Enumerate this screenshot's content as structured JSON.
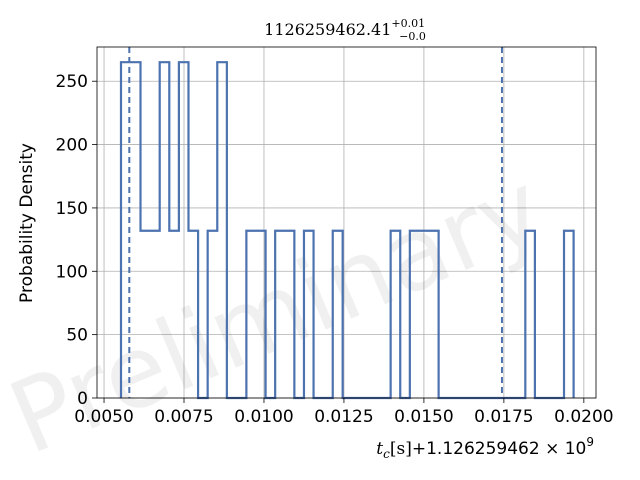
{
  "chart_data": {
    "type": "histogram",
    "title": {
      "base": "1126259462.41",
      "sup": "+0.01",
      "sub": "−0.0"
    },
    "xlabel": {
      "math": "t",
      "math_sub": "c",
      "unit": "[s]",
      "offset": "+1.126259462 × 10",
      "offset_exp": "9"
    },
    "ylabel": "Probability Density",
    "watermark": "Preliminary",
    "xlim": [
      0.00478,
      0.02038
    ],
    "ylim": [
      0,
      277
    ],
    "xticks": [
      0.005,
      0.0075,
      0.01,
      0.0125,
      0.015,
      0.0175,
      0.02
    ],
    "xtick_labels": [
      "0.0050",
      "0.0075",
      "0.0100",
      "0.0125",
      "0.0150",
      "0.0175",
      "0.0200"
    ],
    "yticks": [
      0,
      50,
      100,
      150,
      200,
      250
    ],
    "ytick_labels": [
      "0",
      "50",
      "100",
      "150",
      "200",
      "250"
    ],
    "grid": true,
    "line_color": "#4c72b0",
    "bin_edges": [
      0.00553,
      0.00583,
      0.00614,
      0.00644,
      0.00674,
      0.00704,
      0.00734,
      0.00764,
      0.00794,
      0.00824,
      0.00854,
      0.00884,
      0.00914,
      0.00945,
      0.00975,
      0.01005,
      0.01035,
      0.01065,
      0.01095,
      0.01125,
      0.01155,
      0.01185,
      0.01215,
      0.01246,
      0.01276,
      0.01306,
      0.01336,
      0.01366,
      0.01396,
      0.01426,
      0.01456,
      0.01486,
      0.01516,
      0.01546,
      0.01577,
      0.01607,
      0.01637,
      0.01667,
      0.01697,
      0.01727,
      0.01757,
      0.01787,
      0.01817,
      0.01847,
      0.01878,
      0.01908,
      0.01938,
      0.01968
    ],
    "densities": [
      265,
      265,
      132,
      132,
      265,
      132,
      265,
      132,
      0,
      132,
      265,
      0,
      0,
      132,
      132,
      0,
      132,
      132,
      0,
      132,
      0,
      0,
      132,
      0,
      0,
      0,
      0,
      0,
      132,
      0,
      132,
      132,
      132,
      0,
      0,
      0,
      0,
      0,
      0,
      0,
      0,
      0,
      132,
      0,
      0,
      0,
      132
    ],
    "vlines": [
      0.00579,
      0.01744
    ],
    "vline_style": "dashed"
  }
}
